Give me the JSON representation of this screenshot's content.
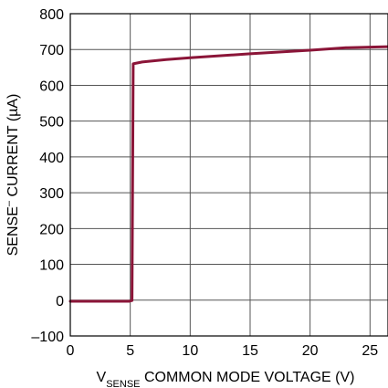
{
  "chart_data": {
    "type": "line",
    "xlabel": {
      "main": "V",
      "subscript": "SENSE",
      "rest": " COMMON MODE VOLTAGE (V)"
    },
    "ylabel": {
      "pre": "SENSE",
      "superscript": "–",
      "rest": " CURRENT (µA)"
    },
    "xlim": [
      0,
      26.5
    ],
    "ylim": [
      -100,
      800
    ],
    "xticks": [
      0,
      5,
      10,
      15,
      20,
      25
    ],
    "xtick_labels": [
      "0",
      "5",
      "10",
      "15",
      "20",
      "25"
    ],
    "yticks": [
      -100,
      0,
      100,
      200,
      300,
      400,
      500,
      600,
      700,
      800
    ],
    "ytick_labels": [
      "–100",
      "0",
      "100",
      "200",
      "300",
      "400",
      "500",
      "600",
      "700",
      "800"
    ],
    "grid": true,
    "series": [
      {
        "color": "#8b1538",
        "x": [
          0,
          4.9,
          5.15,
          5.25,
          6,
          8,
          10,
          15,
          20,
          23,
          26.5
        ],
        "y": [
          -3,
          -3,
          -1,
          660,
          665,
          672,
          677,
          688,
          698,
          705,
          708
        ]
      }
    ]
  }
}
